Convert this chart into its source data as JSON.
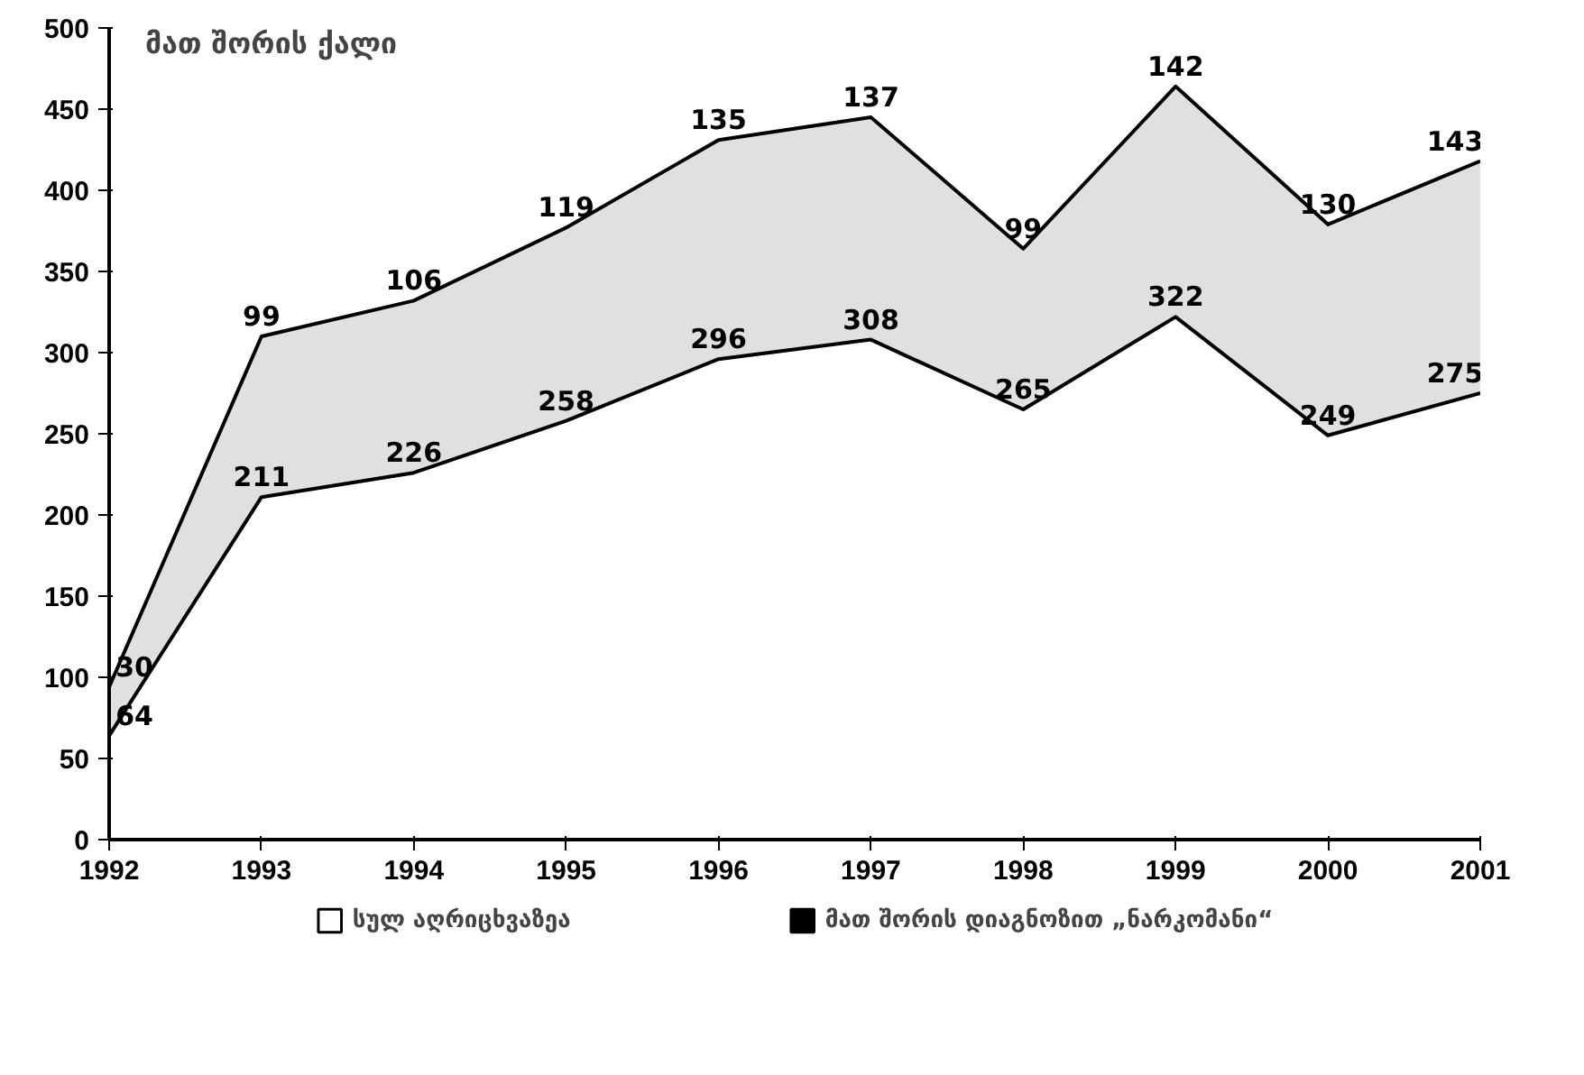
{
  "chart_data": {
    "type": "area",
    "stacked": true,
    "annotations": [
      "მათ შორის ქალი"
    ],
    "x": [
      1992,
      1993,
      1994,
      1995,
      1996,
      1997,
      1998,
      1999,
      2000,
      2001
    ],
    "series": [
      {
        "name": "სულ აღრიცხვაზეა",
        "color": "#ffffff",
        "values": [
          64,
          211,
          226,
          258,
          296,
          308,
          265,
          322,
          249,
          275
        ]
      },
      {
        "name": "მათ შორის დიაგნოზით „ნარკომანი“",
        "color": "#000000",
        "values": [
          30,
          99,
          106,
          119,
          135,
          137,
          99,
          142,
          130,
          143
        ]
      }
    ],
    "xlim": [
      1992,
      2001
    ],
    "xticks": [
      1992,
      1993,
      1994,
      1995,
      1996,
      1997,
      1998,
      1999,
      2000,
      2001
    ],
    "ylim": [
      0,
      500
    ],
    "yticks": [
      0,
      50,
      100,
      150,
      200,
      250,
      300,
      350,
      400,
      450,
      500
    ],
    "data_labels": true,
    "legend": "bottom",
    "grid": false
  }
}
